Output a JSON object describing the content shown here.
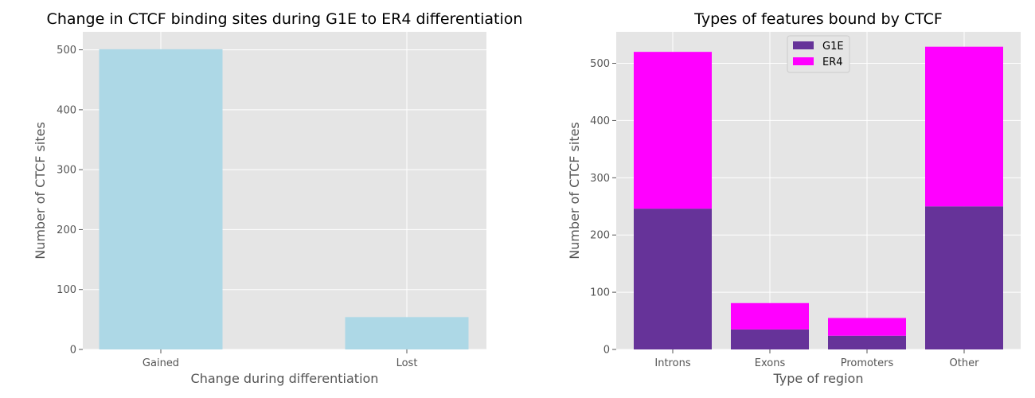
{
  "chart_data": [
    {
      "type": "bar",
      "title": "Change in CTCF binding sites during G1E to ER4 differentiation",
      "xlabel": "Change during differentiation",
      "ylabel": "Number of CTCF sites",
      "categories": [
        "Gained",
        "Lost"
      ],
      "values": [
        501,
        54
      ],
      "ylim": [
        0,
        530
      ],
      "yticks": [
        0,
        100,
        200,
        300,
        400,
        500
      ],
      "color": "#add8e6",
      "grid": true
    },
    {
      "type": "bar",
      "stacked": true,
      "title": "Types of features bound by CTCF",
      "xlabel": "Type of region",
      "ylabel": "Number of CTCF sites",
      "categories": [
        "Introns",
        "Exons",
        "Promoters",
        "Other"
      ],
      "series": [
        {
          "name": "G1E",
          "values": [
            246,
            35,
            24,
            250
          ],
          "color": "#663399"
        },
        {
          "name": "ER4",
          "values": [
            274,
            46,
            31,
            279
          ],
          "color": "#ff00ff"
        }
      ],
      "ylim": [
        0,
        555
      ],
      "yticks": [
        0,
        100,
        200,
        300,
        400,
        500
      ],
      "legend": "upper center",
      "grid": true
    }
  ],
  "style": {
    "plot_bg": "#e5e5e5",
    "grid_color": "#ffffff"
  }
}
